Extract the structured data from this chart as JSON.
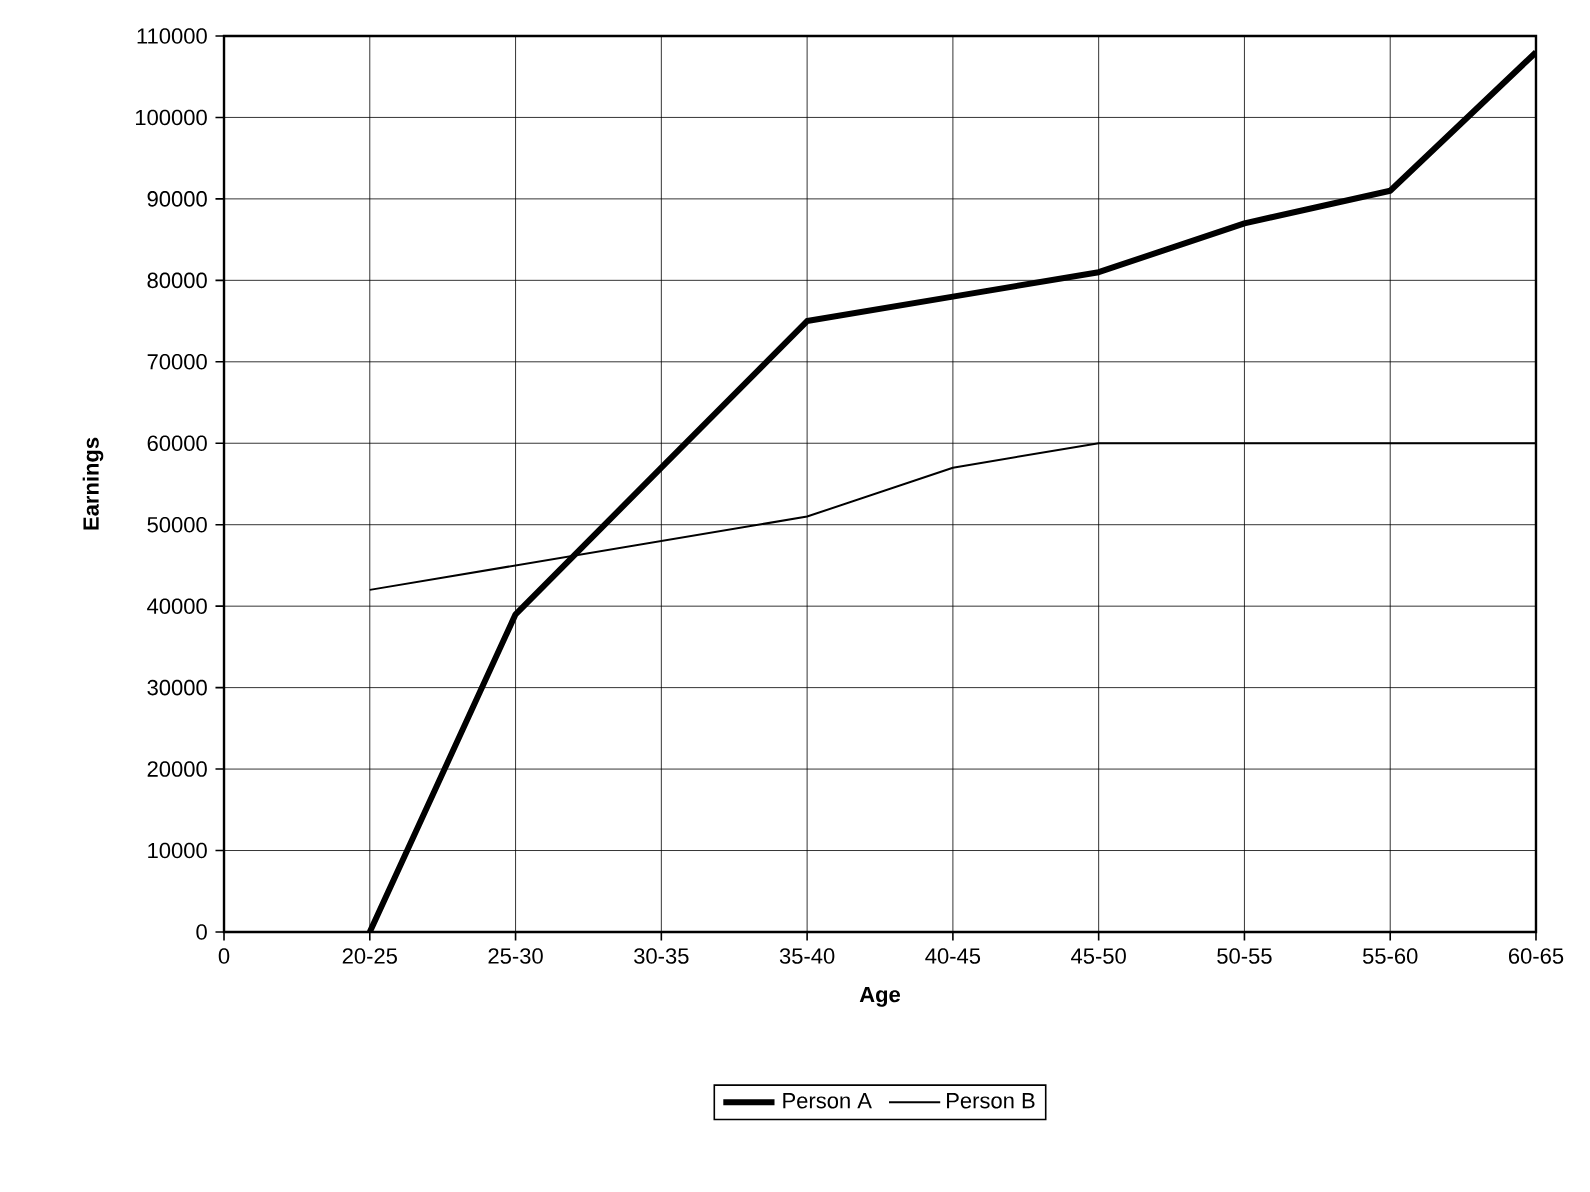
{
  "chart_data": {
    "type": "line",
    "xlabel": "Age",
    "ylabel": "Earnings",
    "categories": [
      "0",
      "20-25",
      "25-30",
      "30-35",
      "35-40",
      "40-45",
      "45-50",
      "50-55",
      "55-60",
      "60-65"
    ],
    "series": [
      {
        "name": "Person A",
        "color": "#000000",
        "values": [
          null,
          0,
          39000,
          57000,
          75000,
          78000,
          81000,
          87000,
          91000,
          108000
        ]
      },
      {
        "name": "Person B",
        "color": "#000000",
        "values": [
          null,
          42000,
          45000,
          48000,
          51000,
          57000,
          60000,
          60000,
          60000,
          60000
        ]
      }
    ],
    "ylim": [
      0,
      110000
    ],
    "yticks": [
      0,
      10000,
      20000,
      30000,
      40000,
      50000,
      60000,
      70000,
      80000,
      90000,
      100000,
      110000
    ],
    "grid": true,
    "legend": "bottom",
    "marker": "none",
    "line_style": "solid"
  }
}
